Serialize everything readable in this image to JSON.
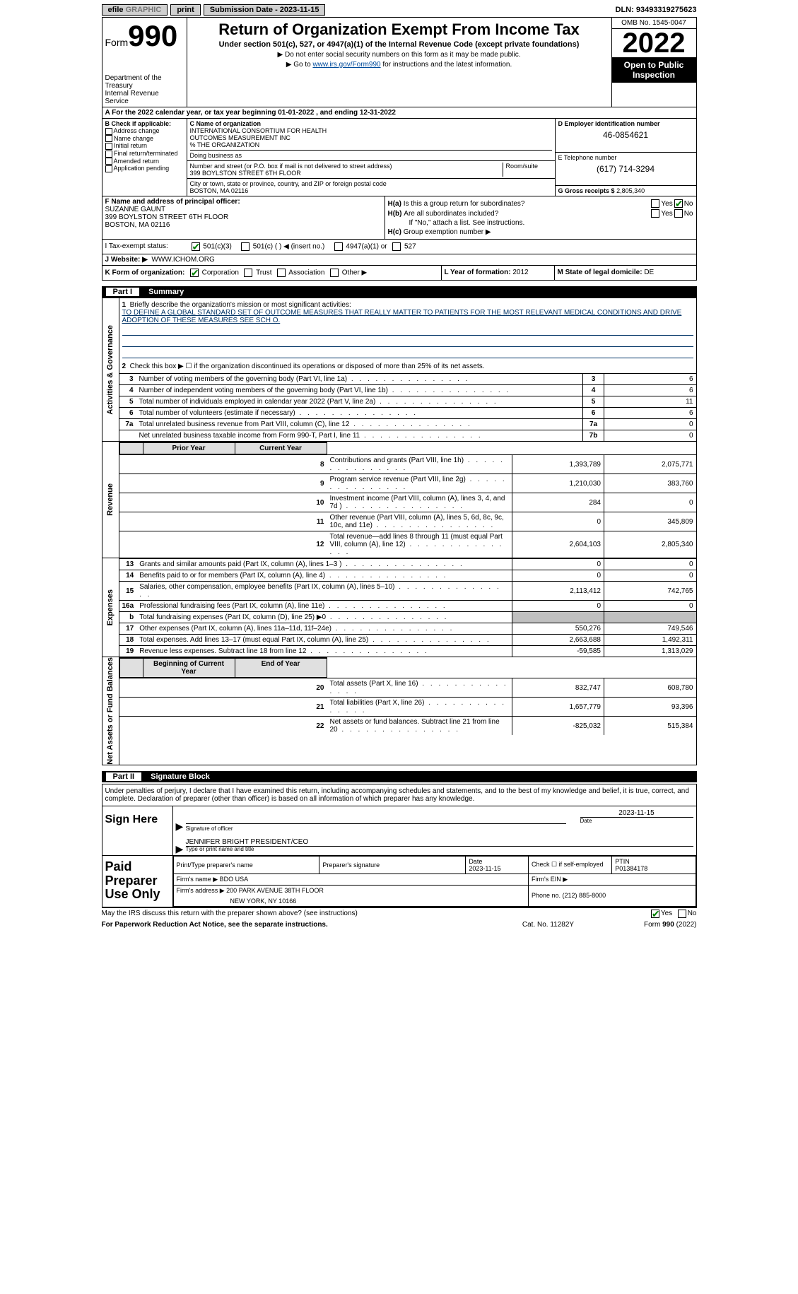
{
  "topbar": {
    "efile_prefix": "efile",
    "efile_suffix": "GRAPHIC",
    "print": "print",
    "submission": "Submission Date - 2023-11-15",
    "dln": "DLN: 93493319275623"
  },
  "header": {
    "form_prefix": "Form",
    "form_number": "990",
    "title": "Return of Organization Exempt From Income Tax",
    "subtitle": "Under section 501(c), 527, or 4947(a)(1) of the Internal Revenue Code (except private foundations)",
    "note1": "Do not enter social security numbers on this form as it may be made public.",
    "note2_prefix": "Go to ",
    "note2_link": "www.irs.gov/Form990",
    "note2_suffix": " for instructions and the latest information.",
    "dept": "Department of the Treasury",
    "irs": "Internal Revenue Service",
    "omb": "OMB No. 1545-0047",
    "year": "2022",
    "open": "Open to Public Inspection"
  },
  "a_row": "For the 2022 calendar year, or tax year beginning 01-01-2022    , and ending 12-31-2022",
  "b": {
    "label": "B Check if applicable:",
    "items": [
      "Address change",
      "Name change",
      "Initial return",
      "Final return/terminated",
      "Amended return",
      "Application pending"
    ]
  },
  "c": {
    "label": "C Name of organization",
    "name1": "INTERNATIONAL CONSORTIUM FOR HEALTH",
    "name2": "OUTCOMES MEASUREMENT INC",
    "name3": "% THE ORGANIZATION",
    "dba_label": "Doing business as",
    "addr_label": "Number and street (or P.O. box if mail is not delivered to street address)",
    "room_label": "Room/suite",
    "addr": "399 BOYLSTON STREET 6TH FLOOR",
    "city_label": "City or town, state or province, country, and ZIP or foreign postal code",
    "city": "BOSTON, MA  02116"
  },
  "d": {
    "label": "D Employer identification number",
    "value": "46-0854621",
    "e_label": "E Telephone number",
    "e_value": "(617) 714-3294",
    "g_label": "G Gross receipts $",
    "g_value": "2,805,340"
  },
  "f": {
    "label": "F  Name and address of principal officer:",
    "name": "SUZANNE GAUNT",
    "addr": "399 BOYLSTON STREET 6TH FLOOR",
    "city": "BOSTON, MA  02116"
  },
  "h": {
    "a_label": "H(a)",
    "a_q": "Is this a group return for subordinates?",
    "b_label": "H(b)",
    "b_q": "Are all subordinates included?",
    "yes": "Yes",
    "no": "No",
    "b_note": "If \"No,\" attach a list. See instructions.",
    "c_label": "H(c)",
    "c_q": "Group exemption number ▶"
  },
  "i": {
    "label": "I    Tax-exempt status:",
    "opt1": "501(c)(3)",
    "opt2": "501(c) (   ) ◀ (insert no.)",
    "opt3": "4947(a)(1) or",
    "opt4": "527"
  },
  "j": {
    "label": "J   Website: ▶",
    "value": "WWW.ICHOM.ORG"
  },
  "k": {
    "label": "K Form of organization:",
    "corp": "Corporation",
    "trust": "Trust",
    "assoc": "Association",
    "other": "Other ▶"
  },
  "l": {
    "label": "L Year of formation:",
    "value": "2012"
  },
  "m": {
    "label": "M State of legal domicile:",
    "value": "DE"
  },
  "part1": {
    "title": "Summary",
    "side1": "Activities & Governance",
    "side2": "Revenue",
    "side3": "Expenses",
    "side4": "Net Assets or Fund Balances",
    "line1_label": "Briefly describe the organization's mission or most significant activities:",
    "line1_text": "TO DEFINE A GLOBAL STANDARD SET OF OUTCOME MEASURES THAT REALLY MATTER TO PATIENTS FOR THE MOST RELEVANT MEDICAL CONDITIONS AND DRIVE ADOPTION OF THESE MEASURES SEE SCH O.",
    "line2": "Check this box ▶ ☐  if the organization discontinued its operations or disposed of more than 25% of its net assets.",
    "prior_hdr": "Prior Year",
    "curr_hdr": "Current Year",
    "beg_hdr": "Beginning of Current Year",
    "end_hdr": "End of Year",
    "rows_gov": [
      {
        "n": "3",
        "d": "Number of voting members of the governing body (Part VI, line 1a)",
        "box": "3",
        "v": "6"
      },
      {
        "n": "4",
        "d": "Number of independent voting members of the governing body (Part VI, line 1b)",
        "box": "4",
        "v": "6"
      },
      {
        "n": "5",
        "d": "Total number of individuals employed in calendar year 2022 (Part V, line 2a)",
        "box": "5",
        "v": "11"
      },
      {
        "n": "6",
        "d": "Total number of volunteers (estimate if necessary)",
        "box": "6",
        "v": "6"
      },
      {
        "n": "7a",
        "d": "Total unrelated business revenue from Part VIII, column (C), line 12",
        "box": "7a",
        "v": "0"
      },
      {
        "n": "",
        "d": "Net unrelated business taxable income from Form 990-T, Part I, line 11",
        "box": "7b",
        "v": "0"
      }
    ],
    "rows_rev": [
      {
        "n": "8",
        "d": "Contributions and grants (Part VIII, line 1h)",
        "p": "1,393,789",
        "c": "2,075,771"
      },
      {
        "n": "9",
        "d": "Program service revenue (Part VIII, line 2g)",
        "p": "1,210,030",
        "c": "383,760"
      },
      {
        "n": "10",
        "d": "Investment income (Part VIII, column (A), lines 3, 4, and 7d )",
        "p": "284",
        "c": "0"
      },
      {
        "n": "11",
        "d": "Other revenue (Part VIII, column (A), lines 5, 6d, 8c, 9c, 10c, and 11e)",
        "p": "0",
        "c": "345,809"
      },
      {
        "n": "12",
        "d": "Total revenue—add lines 8 through 11 (must equal Part VIII, column (A), line 12)",
        "p": "2,604,103",
        "c": "2,805,340"
      }
    ],
    "rows_exp": [
      {
        "n": "13",
        "d": "Grants and similar amounts paid (Part IX, column (A), lines 1–3 )",
        "p": "0",
        "c": "0"
      },
      {
        "n": "14",
        "d": "Benefits paid to or for members (Part IX, column (A), line 4)",
        "p": "0",
        "c": "0"
      },
      {
        "n": "15",
        "d": "Salaries, other compensation, employee benefits (Part IX, column (A), lines 5–10)",
        "p": "2,113,412",
        "c": "742,765"
      },
      {
        "n": "16a",
        "d": "Professional fundraising fees (Part IX, column (A), line 11e)",
        "p": "0",
        "c": "0"
      },
      {
        "n": "b",
        "d": "Total fundraising expenses (Part IX, column (D), line 25) ▶0",
        "p": "",
        "c": "",
        "shade": true
      },
      {
        "n": "17",
        "d": "Other expenses (Part IX, column (A), lines 11a–11d, 11f–24e)",
        "p": "550,276",
        "c": "749,546"
      },
      {
        "n": "18",
        "d": "Total expenses. Add lines 13–17 (must equal Part IX, column (A), line 25)",
        "p": "2,663,688",
        "c": "1,492,311"
      },
      {
        "n": "19",
        "d": "Revenue less expenses. Subtract line 18 from line 12",
        "p": "-59,585",
        "c": "1,313,029"
      }
    ],
    "rows_net": [
      {
        "n": "20",
        "d": "Total assets (Part X, line 16)",
        "p": "832,747",
        "c": "608,780"
      },
      {
        "n": "21",
        "d": "Total liabilities (Part X, line 26)",
        "p": "1,657,779",
        "c": "93,396"
      },
      {
        "n": "22",
        "d": "Net assets or fund balances. Subtract line 21 from line 20",
        "p": "-825,032",
        "c": "515,384"
      }
    ]
  },
  "part2": {
    "title": "Signature Block",
    "declaration": "Under penalties of perjury, I declare that I have examined this return, including accompanying schedules and statements, and to the best of my knowledge and belief, it is true, correct, and complete. Declaration of preparer (other than officer) is based on all information of which preparer has any knowledge.",
    "sign_here": "Sign Here",
    "sig_of_officer": "Signature of officer",
    "date_label": "Date",
    "date_val": "2023-11-15",
    "officer_name": "JENNIFER BRIGHT PRESIDENT/CEO",
    "type_name": "Type or print name and title",
    "paid": "Paid Preparer Use Only",
    "prep_name_label": "Print/Type preparer's name",
    "prep_sig_label": "Preparer's signature",
    "prep_date_label": "Date",
    "prep_date": "2023-11-15",
    "prep_check": "Check ☐ if self-employed",
    "ptin_label": "PTIN",
    "ptin": "P01384178",
    "firm_name_label": "Firm's name    ▶",
    "firm_name": "BDO USA",
    "firm_ein_label": "Firm's EIN ▶",
    "firm_addr_label": "Firm's address ▶",
    "firm_addr1": "200 PARK AVENUE 38TH FLOOR",
    "firm_addr2": "NEW YORK, NY  10166",
    "phone_label": "Phone no.",
    "phone": "(212) 885-8000",
    "irs_q": "May the IRS discuss this return with the preparer shown above? (see instructions)"
  },
  "footer": {
    "pra": "For Paperwork Reduction Act Notice, see the separate instructions.",
    "cat": "Cat. No. 11282Y",
    "form": "Form 990 (2022)"
  }
}
